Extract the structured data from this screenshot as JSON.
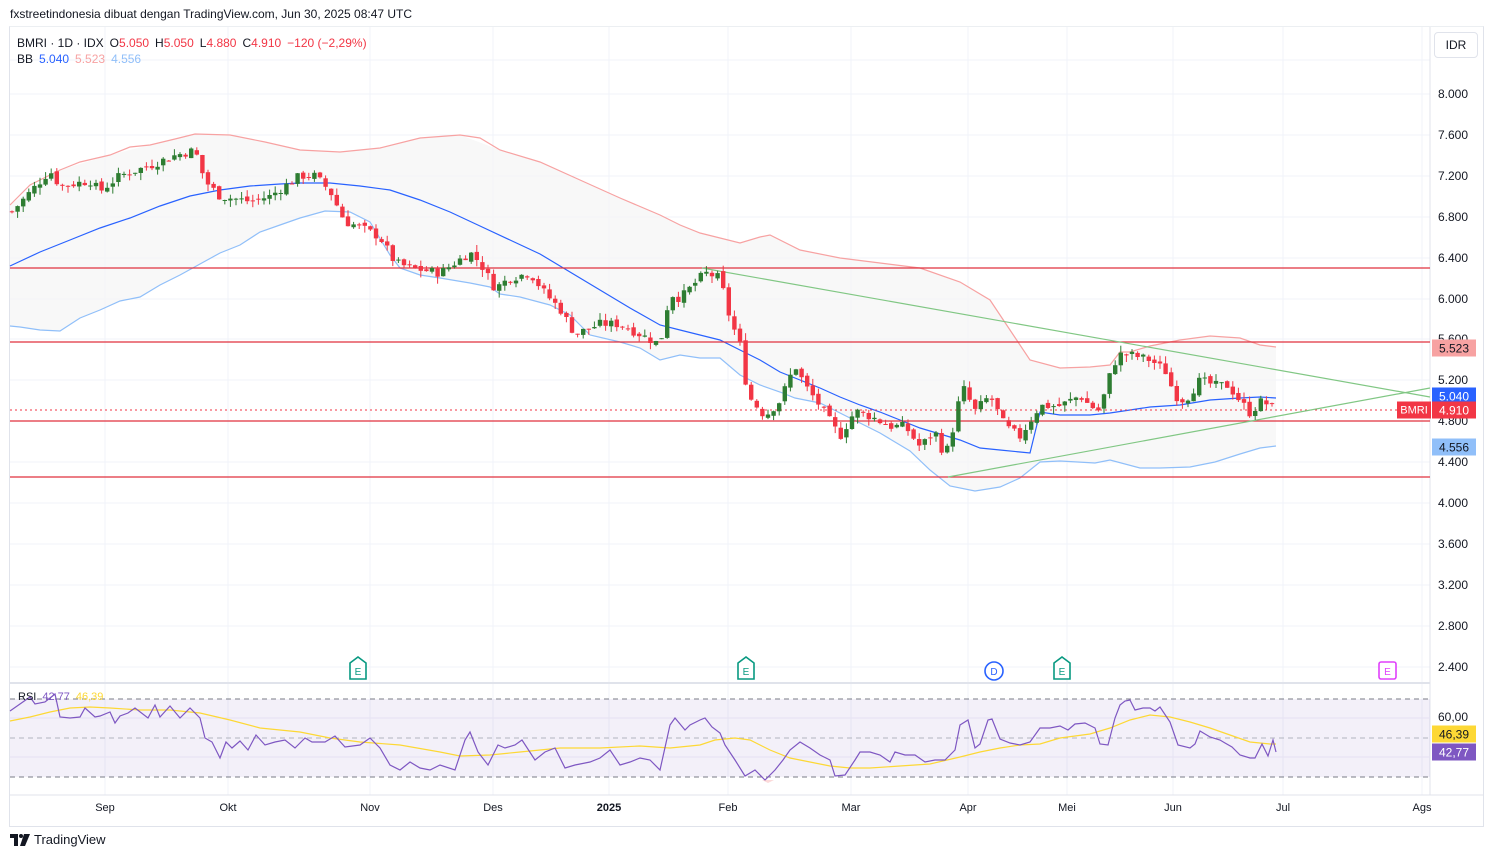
{
  "header": {
    "attribution": "fxstreetindonesia dibuat dengan TradingView.com, Jun 30, 2025 08:47 UTC"
  },
  "legend": {
    "symbol": "BMRI · 1D · IDX",
    "open_label": "O",
    "open": "5.050",
    "high_label": "H",
    "high": "5.050",
    "low_label": "L",
    "low": "4.880",
    "close_label": "C",
    "close": "4.910",
    "change": "−120 (−2,29%)",
    "bb_label": "BB",
    "bb_basis": "5.040",
    "bb_upper": "5.523",
    "bb_lower": "4.556"
  },
  "price_scale": {
    "currency": "IDR",
    "ticks": [
      "8.000",
      "7.600",
      "7.200",
      "6.800",
      "6.400",
      "6.000",
      "5.600",
      "5.200",
      "4.800",
      "4.400",
      "4.000",
      "3.600",
      "3.200",
      "2.800",
      "2.400"
    ],
    "labels": {
      "bb_upper": "5.523",
      "bb_basis": "5.040",
      "last": "4.910",
      "bb_lower": "4.556",
      "symbol_tag": "BMRI"
    }
  },
  "rsi": {
    "label": "RSI",
    "value": "42,77",
    "ma_value": "46,39",
    "tick": "60,00"
  },
  "time_axis": {
    "ticks": [
      "Sep",
      "Okt",
      "Nov",
      "Des",
      "2025",
      "Feb",
      "Mar",
      "Apr",
      "Mei",
      "Jun",
      "Jul",
      "Ags"
    ]
  },
  "events": [
    {
      "type": "E",
      "style": "earnings-past"
    },
    {
      "type": "E",
      "style": "earnings-past"
    },
    {
      "type": "D",
      "style": "dividend"
    },
    {
      "type": "E",
      "style": "earnings-past"
    },
    {
      "type": "E",
      "style": "earnings-future"
    }
  ],
  "brand": {
    "name": "TradingView"
  },
  "colors": {
    "up": "#2e7d32",
    "down": "#f23645",
    "bb_basis": "#2962ff",
    "bb_upper": "#f7a2a2",
    "bb_lower": "#90bff9",
    "hline": "#e0323f",
    "trend": "#81c784",
    "rsi": "#7e57c2",
    "rsi_ma": "#fdd835"
  },
  "chart_data": {
    "type": "candlestick",
    "title": "BMRI · 1D · IDX",
    "ylabel": "IDR",
    "ylim": [
      2200,
      8400
    ],
    "x_ticks": [
      "Sep",
      "Okt",
      "Nov",
      "Des",
      "2025",
      "Feb",
      "Mar",
      "Apr",
      "Mei",
      "Jun",
      "Jul",
      "Ags"
    ],
    "last_ohlc": {
      "open": 5050,
      "high": 5050,
      "low": 4880,
      "close": 4910,
      "change": -120,
      "change_pct": -2.29
    },
    "bollinger": {
      "basis": 5040,
      "upper": 5523,
      "lower": 4556
    },
    "horizontal_lines": [
      6300,
      5560,
      4780,
      4240
    ],
    "trendlines": [
      {
        "name": "descending resistance",
        "from": [
          "late Jan 2025",
          6300
        ],
        "to": [
          "Aug 2025",
          5080
        ]
      },
      {
        "name": "ascending support",
        "from": [
          "late Mar 2025",
          4250
        ],
        "to": [
          "Aug 2025",
          5110
        ]
      }
    ],
    "approx_closes": [
      {
        "date": "2024-08",
        "close": 6900
      },
      {
        "date": "2024-09-early",
        "close": 7200
      },
      {
        "date": "2024-09-mid",
        "close": 7300
      },
      {
        "date": "2024-09-end",
        "close": 7400
      },
      {
        "date": "2024-10-early",
        "close": 6950
      },
      {
        "date": "2024-10-mid",
        "close": 6950
      },
      {
        "date": "2024-10-end",
        "close": 7150
      },
      {
        "date": "2024-11-early",
        "close": 6700
      },
      {
        "date": "2024-11-mid",
        "close": 6250
      },
      {
        "date": "2024-11-end",
        "close": 6200
      },
      {
        "date": "2024-12-mid",
        "close": 6100
      },
      {
        "date": "2024-12-end",
        "close": 5800
      },
      {
        "date": "2025-01-mid",
        "close": 5500
      },
      {
        "date": "2025-01-end",
        "close": 6200
      },
      {
        "date": "2025-02-mid",
        "close": 4900
      },
      {
        "date": "2025-02-end",
        "close": 4650
      },
      {
        "date": "2025-03-mid",
        "close": 4550
      },
      {
        "date": "2025-03-end",
        "close": 4300
      },
      {
        "date": "2025-04-early",
        "close": 5000
      },
      {
        "date": "2025-04-end",
        "close": 4900
      },
      {
        "date": "2025-05-mid",
        "close": 5450
      },
      {
        "date": "2025-05-end",
        "close": 5200
      },
      {
        "date": "2025-06-mid",
        "close": 5100
      },
      {
        "date": "2025-06-30",
        "close": 4910
      }
    ],
    "rsi": {
      "value": 42.77,
      "ma": 46.39,
      "levels": [
        70,
        50,
        30
      ],
      "tick_labels": [
        "60,00"
      ]
    },
    "events": [
      {
        "type": "earnings",
        "x": "late Oct 2024"
      },
      {
        "type": "earnings",
        "x": "early Feb 2025"
      },
      {
        "type": "dividend",
        "x": "mid Apr 2025"
      },
      {
        "type": "earnings",
        "x": "end Apr 2025"
      },
      {
        "type": "earnings (upcoming)",
        "x": "late Jul 2025"
      }
    ]
  }
}
